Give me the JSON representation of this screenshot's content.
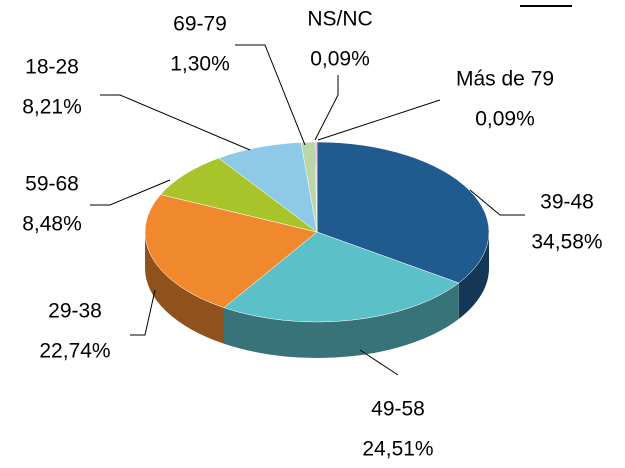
{
  "chart_data": {
    "type": "pie",
    "categories": [
      "39-48",
      "49-58",
      "29-38",
      "59-68",
      "18-28",
      "69-79",
      "NS/NC",
      "Más de 79"
    ],
    "values": [
      34.58,
      24.51,
      22.74,
      8.48,
      8.21,
      1.3,
      0.09,
      0.09
    ],
    "value_labels": [
      "34,58%",
      "24,51%",
      "22,74%",
      "8,48%",
      "8,21%",
      "1,30%",
      "0,09%",
      "0,09%"
    ],
    "colors": [
      "#1f5b8e",
      "#5bc0c8",
      "#f0892e",
      "#a8c42a",
      "#8ecae8",
      "#b9d7a8",
      "#5f6ab0",
      "#d45aa5"
    ]
  }
}
